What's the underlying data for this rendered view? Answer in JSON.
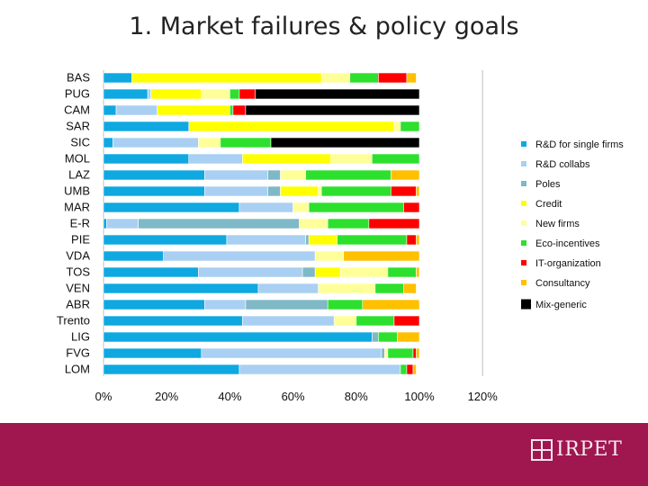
{
  "slide": {
    "title": "1. Market failures & policy goals"
  },
  "footer": {
    "logo_text": "IRPET"
  },
  "chart_data": {
    "type": "stacked-bar-horizontal-percent",
    "xlim": [
      0,
      120
    ],
    "xticks": [
      0,
      20,
      40,
      60,
      80,
      100,
      120
    ],
    "xtick_labels": [
      "0%",
      "20%",
      "40%",
      "60%",
      "80%",
      "100%",
      "120%"
    ],
    "categories": [
      "BAS",
      "PUG",
      "CAM",
      "SAR",
      "SIC",
      "MOL",
      "LAZ",
      "UMB",
      "MAR",
      "E-R",
      "PIE",
      "VDA",
      "TOS",
      "VEN",
      "ABR",
      "Trento",
      "LIG",
      "FVG",
      "LOM"
    ],
    "legend_position": "right",
    "series": [
      {
        "name": "R&D for single firms",
        "color": "#0fa8e0",
        "values": [
          9,
          14,
          4,
          27,
          3,
          27,
          32,
          32,
          43,
          1,
          39,
          19,
          30,
          49,
          32,
          44,
          85,
          31,
          43
        ]
      },
      {
        "name": "R&D collabs",
        "color": "#a9d0f2",
        "values": [
          0,
          1,
          13,
          0,
          27,
          17,
          20,
          20,
          17,
          10,
          25,
          48,
          33,
          19,
          13,
          29,
          0,
          57,
          51
        ]
      },
      {
        "name": "Poles",
        "color": "#7fb8c6",
        "values": [
          0,
          0,
          0,
          0,
          0,
          0,
          4,
          4,
          0,
          51,
          1,
          0,
          4,
          0,
          26,
          0,
          2,
          1,
          0
        ]
      },
      {
        "name": "Credit",
        "color": "#ffff00",
        "values": [
          60,
          16,
          23,
          65,
          0,
          28,
          0,
          12,
          0,
          0,
          9,
          0,
          8,
          0,
          0,
          0,
          0,
          0,
          0
        ]
      },
      {
        "name": "New firms",
        "color": "#ffff99",
        "values": [
          9,
          9,
          0,
          2,
          7,
          13,
          8,
          1,
          5,
          9,
          0,
          9,
          15,
          18,
          0,
          7,
          0,
          1,
          0
        ]
      },
      {
        "name": "Eco-incentives",
        "color": "#2de02d",
        "values": [
          9,
          3,
          1,
          6,
          16,
          15,
          27,
          22,
          30,
          13,
          22,
          0,
          9,
          9,
          11,
          12,
          6,
          8,
          2
        ]
      },
      {
        "name": "IT-organization",
        "color": "#ff0000",
        "values": [
          9,
          5,
          4,
          0,
          0,
          0,
          0,
          8,
          5,
          16,
          3,
          0,
          0,
          0,
          0,
          8,
          0,
          1,
          2
        ]
      },
      {
        "name": "Consultancy",
        "color": "#ffc000",
        "values": [
          3,
          0,
          0,
          0,
          0,
          0,
          9,
          1,
          0,
          0,
          1,
          24,
          1,
          4,
          18,
          0,
          7,
          1,
          1
        ]
      },
      {
        "name": "Mix-generic",
        "color": "#000000",
        "values": [
          0,
          52,
          55,
          0,
          47,
          0,
          0,
          0,
          0,
          0,
          0,
          0,
          0,
          0,
          0,
          0,
          0,
          0,
          0
        ]
      }
    ]
  }
}
